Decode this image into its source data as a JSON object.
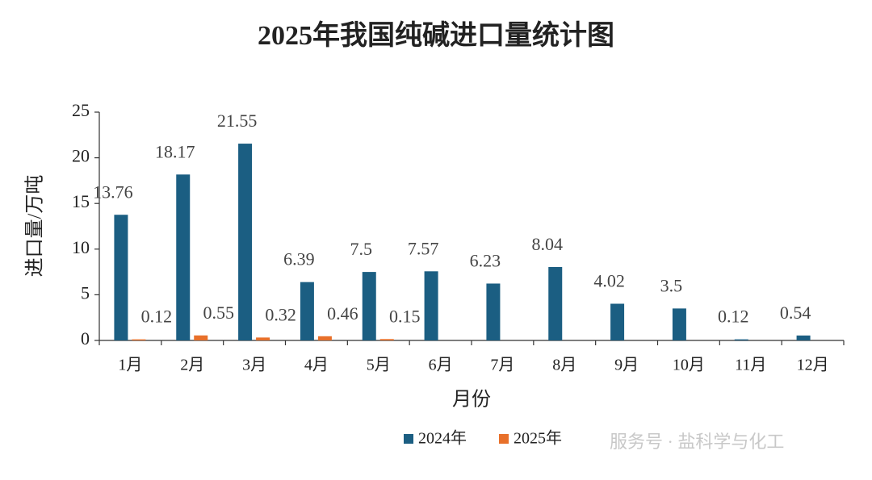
{
  "chart_data": {
    "type": "bar",
    "title": "2025年我国纯碱进口量统计图",
    "xlabel": "月份",
    "ylabel": "进口量/万吨",
    "categories": [
      "1月",
      "2月",
      "3月",
      "4月",
      "5月",
      "6月",
      "7月",
      "8月",
      "9月",
      "10月",
      "11月",
      "12月"
    ],
    "series": [
      {
        "name": "2024年",
        "color": "#1b5e82",
        "values": [
          13.76,
          18.17,
          21.55,
          6.39,
          7.5,
          7.57,
          6.23,
          8.04,
          4.02,
          3.5,
          0.12,
          0.54
        ]
      },
      {
        "name": "2025年",
        "color": "#e8702a",
        "values": [
          0.12,
          0.55,
          0.32,
          0.46,
          0.15,
          null,
          null,
          null,
          null,
          null,
          null,
          null
        ]
      }
    ],
    "ylim": [
      0,
      25
    ],
    "yticks": [
      0,
      5,
      10,
      15,
      20,
      25
    ],
    "grid": false,
    "legend": "bottom",
    "watermark": "服务号 · 盐科学与化工"
  }
}
